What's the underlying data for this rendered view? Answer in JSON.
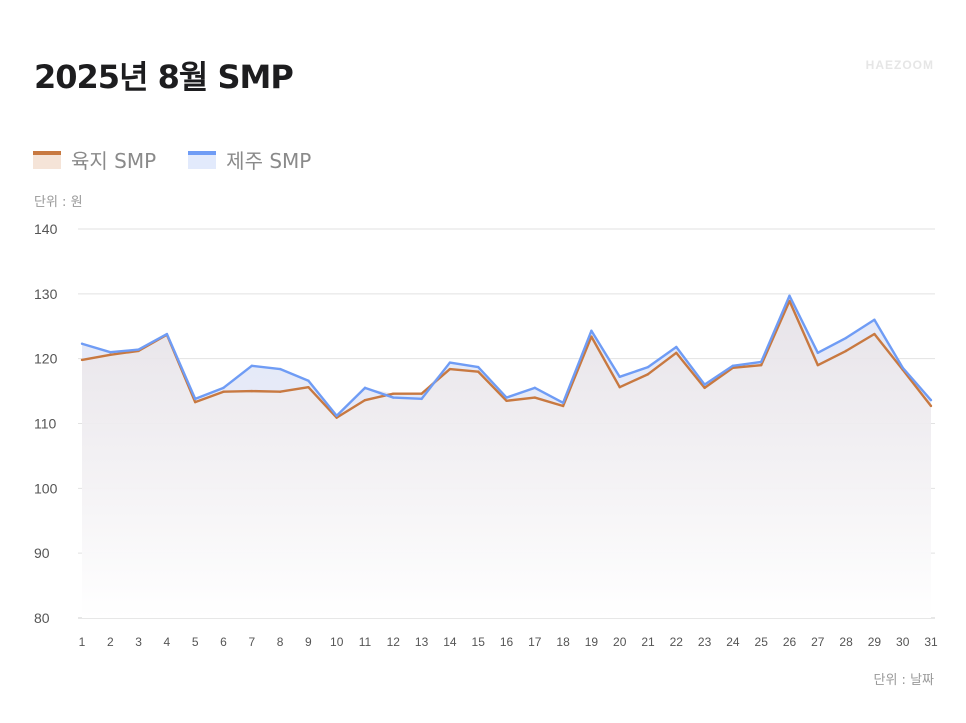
{
  "title": "2025년 8월 SMP",
  "logo": "HAEZOOM",
  "unit_y": "단위 : 원",
  "unit_x": "단위 : 날짜",
  "chart_data": {
    "type": "line",
    "title": "2025년 8월 SMP",
    "xlabel": "단위 : 날짜",
    "ylabel": "단위 : 원",
    "ylim": [
      80,
      140
    ],
    "yticks": [
      80,
      90,
      100,
      110,
      120,
      130,
      140
    ],
    "grid": true,
    "legend_position": "top-left",
    "x": [
      1,
      2,
      3,
      4,
      5,
      6,
      7,
      8,
      9,
      10,
      11,
      12,
      13,
      14,
      15,
      16,
      17,
      18,
      19,
      20,
      21,
      22,
      23,
      24,
      25,
      26,
      27,
      28,
      29,
      30,
      31
    ],
    "series": [
      {
        "name": "육지 SMP",
        "color": "#c87941",
        "fill": "#f5e4d8",
        "values": [
          119.8,
          120.6,
          121.2,
          123.7,
          113.3,
          114.9,
          115.0,
          114.9,
          115.6,
          110.9,
          113.6,
          114.6,
          114.6,
          118.4,
          118.0,
          113.5,
          114.0,
          112.7,
          123.4,
          115.6,
          117.6,
          120.9,
          115.5,
          118.6,
          119.0,
          128.9,
          119.0,
          121.2,
          123.8,
          118.3,
          112.7
        ]
      },
      {
        "name": "제주 SMP",
        "color": "#6f9cf5",
        "fill": "#e2eafc",
        "values": [
          122.3,
          121.0,
          121.4,
          123.8,
          113.8,
          115.5,
          118.9,
          118.4,
          116.6,
          111.2,
          115.5,
          114.0,
          113.8,
          119.4,
          118.7,
          114.0,
          115.5,
          113.2,
          124.3,
          117.2,
          118.7,
          121.8,
          116.0,
          118.9,
          119.5,
          129.7,
          120.9,
          123.2,
          126.0,
          118.6,
          113.6
        ]
      }
    ]
  }
}
